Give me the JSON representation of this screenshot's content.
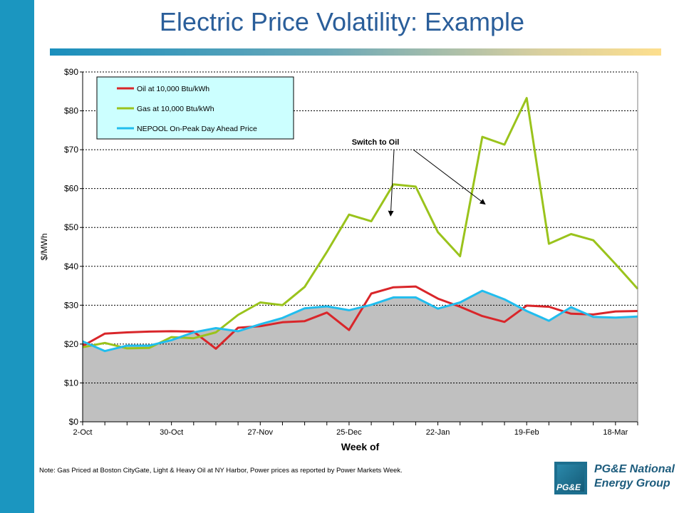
{
  "slide": {
    "title": "Electric Price Volatility:  Example",
    "note": "Note: Gas Priced at Boston CityGate, Light & Heavy Oil at NY Harbor, Power prices as reported by Power Markets Week."
  },
  "logo": {
    "line1": "PG&E National",
    "line2": "Energy Group",
    "mark": "PG&E"
  },
  "colors": {
    "side_bar": "#1b96c0",
    "title": "#2a5e9a",
    "oil": "#d9262a",
    "gas": "#9ac31c",
    "nepool": "#21bdee",
    "area": "#c0c0c0",
    "legend_bg": "#ccffff"
  },
  "chart_data": {
    "type": "line",
    "xlabel": "Week of",
    "ylabel": "$/MWh",
    "ylim": [
      0,
      90
    ],
    "ytick_labels": [
      "$0",
      "$10",
      "$20",
      "$30",
      "$40",
      "$50",
      "$60",
      "$70",
      "$80",
      "$90"
    ],
    "x_tick_labels": [
      {
        "week": 0,
        "label": "2-Oct"
      },
      {
        "week": 4,
        "label": "30-Oct"
      },
      {
        "week": 8,
        "label": "27-Nov"
      },
      {
        "week": 12,
        "label": "25-Dec"
      },
      {
        "week": 16,
        "label": "22-Jan"
      },
      {
        "week": 20,
        "label": "19-Feb"
      },
      {
        "week": 24,
        "label": "18-Mar"
      }
    ],
    "num_weeks": 26,
    "grid": "horizontal dashed",
    "legend_position": "top-left",
    "series": [
      {
        "name": "Oil at 10,000 Btu/kWh",
        "color": "#d9262a",
        "values": [
          19.5,
          22.7,
          23.0,
          23.2,
          23.3,
          23.2,
          18.8,
          24.2,
          24.6,
          25.6,
          25.9,
          28.1,
          23.6,
          33.0,
          34.6,
          34.8,
          31.7,
          29.6,
          27.2,
          25.7,
          29.9,
          29.6,
          27.8,
          27.6,
          28.4,
          28.5
        ]
      },
      {
        "name": "Gas at 10,000 Btu/kWh",
        "color": "#9ac31c",
        "values": [
          19.2,
          20.3,
          18.9,
          19.0,
          21.8,
          21.5,
          23.0,
          27.5,
          30.7,
          30.0,
          34.7,
          43.7,
          53.3,
          51.6,
          61.1,
          60.5,
          48.8,
          42.6,
          73.3,
          71.3,
          83.3,
          45.8,
          48.3,
          46.7,
          40.6,
          34.2
        ]
      },
      {
        "name": "NEPOOL On-Peak Day Ahead Price",
        "color": "#21bdee",
        "area": true,
        "values": [
          20.7,
          18.2,
          19.6,
          19.6,
          21.0,
          23.0,
          24.1,
          23.3,
          25.1,
          26.7,
          29.2,
          29.7,
          28.7,
          30.1,
          32.0,
          32.0,
          29.1,
          30.7,
          33.7,
          31.5,
          28.5,
          26.0,
          29.5,
          27.0,
          26.8,
          27.1
        ]
      }
    ],
    "annotations": [
      {
        "text": "Switch to Oil",
        "arrow_targets": [
          {
            "week": 14,
            "value": 53
          },
          {
            "week": 18,
            "value": 56
          }
        ]
      }
    ]
  }
}
